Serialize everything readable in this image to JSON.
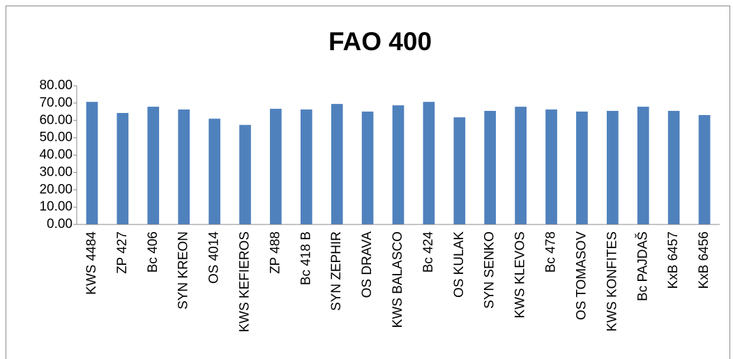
{
  "chart_data": {
    "type": "bar",
    "title": "FAO 400",
    "categories": [
      "KWS 4484",
      "ZP 427",
      "Bc 406",
      "SYN KREON",
      "OS 4014",
      "KWS KEFIEROS",
      "ZP 488",
      "Bc 418 B",
      "SYN ZEPHIR",
      "OS DRAVA",
      "KWS BALASCO",
      "Bc 424",
      "OS KULAK",
      "SYN SENKO",
      "KWS KLEVOS",
      "Bc 478",
      "OS TOMASOV",
      "KWS KONFITES",
      "Bc PAJDAŠ",
      "KxB 6457",
      "KxB 6456"
    ],
    "values": [
      70.7,
      64.3,
      67.9,
      66.3,
      61.0,
      57.4,
      66.7,
      66.3,
      69.5,
      65.1,
      68.7,
      70.7,
      61.8,
      65.5,
      67.9,
      66.3,
      65.1,
      65.5,
      67.9,
      65.5,
      63.1
    ],
    "color": "#4f81bd",
    "ylim": [
      0,
      80
    ],
    "yticks": [
      {
        "value": 0,
        "label": "0.00"
      },
      {
        "value": 10,
        "label": "10.00"
      },
      {
        "value": 20,
        "label": "20.00"
      },
      {
        "value": 30,
        "label": "30.00"
      },
      {
        "value": 40,
        "label": "40.00"
      },
      {
        "value": 50,
        "label": "50.00"
      },
      {
        "value": 60,
        "label": "60.00"
      },
      {
        "value": 70,
        "label": "70.00"
      },
      {
        "value": 80,
        "label": "80.00"
      }
    ],
    "grid": false
  }
}
